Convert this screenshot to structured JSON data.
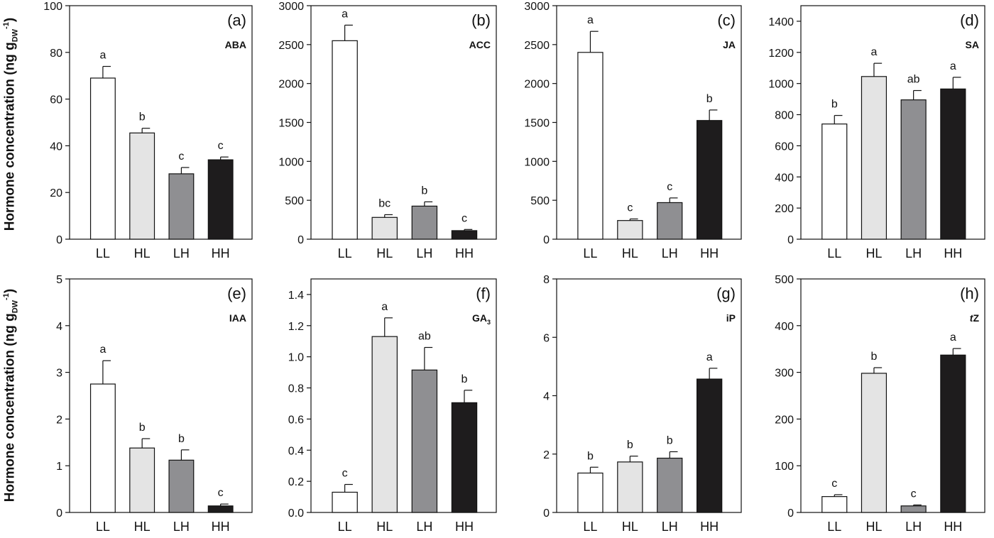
{
  "y_axis_label": {
    "main": "Hormone concentration (ng g",
    "sub": "DW",
    "sup": "-1",
    "close": ")"
  },
  "colors": {
    "LL": "#ffffff",
    "HL": "#e4e4e4",
    "LH": "#8f8f92",
    "HH": "#1e1c1d"
  },
  "chart_data": [
    {
      "type": "bar",
      "panel": "(a)",
      "hormone": "ABA",
      "categories": [
        "LL",
        "HL",
        "LH",
        "HH"
      ],
      "values": [
        69,
        45.5,
        28,
        34
      ],
      "errors": [
        5,
        2,
        2.7,
        1.2
      ],
      "letters": [
        "a",
        "b",
        "c",
        "c"
      ],
      "ylim": [
        0,
        100
      ],
      "yticks": [
        0,
        20,
        40,
        60,
        80,
        100
      ],
      "ytick_labels": [
        "0",
        "20",
        "40",
        "60",
        "80",
        "100"
      ]
    },
    {
      "type": "bar",
      "panel": "(b)",
      "hormone": "ACC",
      "categories": [
        "LL",
        "HL",
        "LH",
        "HH"
      ],
      "values": [
        2550,
        280,
        425,
        110
      ],
      "errors": [
        200,
        35,
        55,
        15
      ],
      "letters": [
        "a",
        "bc",
        "b",
        "c"
      ],
      "ylim": [
        0,
        3000
      ],
      "yticks": [
        0,
        500,
        1000,
        1500,
        2000,
        2500,
        3000
      ],
      "ytick_labels": [
        "0",
        "500",
        "1000",
        "1500",
        "2000",
        "2500",
        "3000"
      ]
    },
    {
      "type": "bar",
      "panel": "(c)",
      "hormone": "JA",
      "categories": [
        "LL",
        "HL",
        "LH",
        "HH"
      ],
      "values": [
        2400,
        240,
        470,
        1525
      ],
      "errors": [
        270,
        20,
        60,
        135
      ],
      "letters": [
        "a",
        "c",
        "c",
        "b"
      ],
      "ylim": [
        0,
        3000
      ],
      "yticks": [
        0,
        500,
        1000,
        1500,
        2000,
        2500,
        3000
      ],
      "ytick_labels": [
        "0",
        "500",
        "1000",
        "1500",
        "2000",
        "2500",
        "3000"
      ]
    },
    {
      "type": "bar",
      "panel": "(d)",
      "hormone": "SA",
      "categories": [
        "LL",
        "HL",
        "LH",
        "HH"
      ],
      "values": [
        740,
        1045,
        895,
        965
      ],
      "errors": [
        55,
        85,
        60,
        75
      ],
      "letters": [
        "b",
        "a",
        "ab",
        "a"
      ],
      "ylim": [
        0,
        1500
      ],
      "yticks": [
        0,
        200,
        400,
        600,
        800,
        1000,
        1200,
        1400
      ],
      "ytick_labels": [
        "0",
        "200",
        "400",
        "600",
        "800",
        "1000",
        "1200",
        "1400"
      ]
    },
    {
      "type": "bar",
      "panel": "(e)",
      "hormone": "IAA",
      "categories": [
        "LL",
        "HL",
        "LH",
        "HH"
      ],
      "values": [
        2.75,
        1.38,
        1.12,
        0.14
      ],
      "errors": [
        0.5,
        0.2,
        0.22,
        0.04
      ],
      "letters": [
        "a",
        "b",
        "b",
        "c"
      ],
      "ylim": [
        0,
        5
      ],
      "yticks": [
        0,
        1,
        2,
        3,
        4,
        5
      ],
      "ytick_labels": [
        "0",
        "1",
        "2",
        "3",
        "4",
        "5"
      ]
    },
    {
      "type": "bar",
      "panel": "(f)",
      "hormone": "GA",
      "hormone_sub": "3",
      "categories": [
        "LL",
        "HL",
        "LH",
        "HH"
      ],
      "values": [
        0.13,
        1.13,
        0.915,
        0.705
      ],
      "errors": [
        0.05,
        0.12,
        0.145,
        0.08
      ],
      "letters": [
        "c",
        "a",
        "ab",
        "b"
      ],
      "ylim": [
        0,
        1.5
      ],
      "yticks": [
        0,
        0.2,
        0.4,
        0.6,
        0.8,
        1.0,
        1.2,
        1.4
      ],
      "ytick_labels": [
        "0.0",
        "0.2",
        "0.4",
        "0.6",
        "0.8",
        "1.0",
        "1.2",
        "1.4"
      ]
    },
    {
      "type": "bar",
      "panel": "(g)",
      "hormone": "iP",
      "categories": [
        "LL",
        "HL",
        "LH",
        "HH"
      ],
      "values": [
        1.35,
        1.73,
        1.86,
        4.57
      ],
      "errors": [
        0.2,
        0.2,
        0.22,
        0.37
      ],
      "letters": [
        "b",
        "b",
        "b",
        "a"
      ],
      "ylim": [
        0,
        8
      ],
      "yticks": [
        0,
        2,
        4,
        6,
        8
      ],
      "ytick_labels": [
        "0",
        "2",
        "4",
        "6",
        "8"
      ]
    },
    {
      "type": "bar",
      "panel": "(h)",
      "hormone": "tZ",
      "hormone_italic_prefix": "t",
      "hormone_rest": "Z",
      "categories": [
        "LL",
        "HL",
        "LH",
        "HH"
      ],
      "values": [
        34,
        298,
        14,
        337
      ],
      "errors": [
        4,
        12,
        2,
        14
      ],
      "letters": [
        "c",
        "b",
        "c",
        "a"
      ],
      "ylim": [
        0,
        500
      ],
      "yticks": [
        0,
        100,
        200,
        300,
        400,
        500
      ],
      "ytick_labels": [
        "0",
        "100",
        "200",
        "300",
        "400",
        "500"
      ]
    }
  ]
}
